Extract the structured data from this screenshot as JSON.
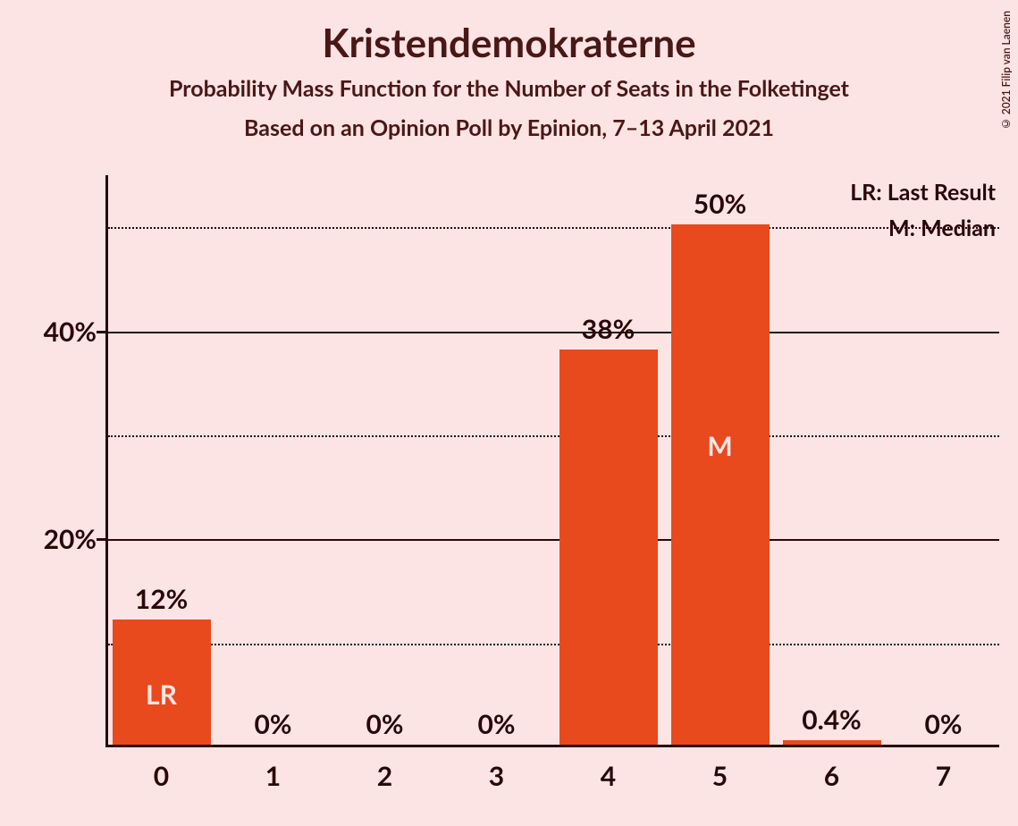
{
  "title": "Kristendemokraterne",
  "subtitle1": "Probability Mass Function for the Number of Seats in the Folketinget",
  "subtitle2": "Based on an Opinion Poll by Epinion, 7–13 April 2021",
  "copyright": "© 2021 Filip van Laenen",
  "legend": {
    "lr": "LR: Last Result",
    "m": "M: Median"
  },
  "chart": {
    "type": "bar",
    "background_color": "#fce4e4",
    "bar_color": "#e8491d",
    "axis_color": "#2a0808",
    "text_color": "#2a0808",
    "title_color": "#4a1717",
    "marker_text_color": "#fce4e4",
    "ylim": [
      0,
      55
    ],
    "y_major_ticks": [
      20,
      40
    ],
    "y_minor_ticks": [
      10,
      30,
      50
    ],
    "y_tick_labels": {
      "20": "20%",
      "40": "40%"
    },
    "categories": [
      "0",
      "1",
      "2",
      "3",
      "4",
      "5",
      "6",
      "7"
    ],
    "values": [
      12,
      0,
      0,
      0,
      38,
      50,
      0.4,
      0
    ],
    "value_labels": [
      "12%",
      "0%",
      "0%",
      "0%",
      "38%",
      "50%",
      "0.4%",
      "0%"
    ],
    "markers": {
      "0": "LR",
      "5": "M"
    },
    "bar_width_ratio": 0.88,
    "title_fontsize": 44,
    "subtitle_fontsize": 25,
    "axis_label_fontsize": 30,
    "legend_fontsize": 25
  }
}
